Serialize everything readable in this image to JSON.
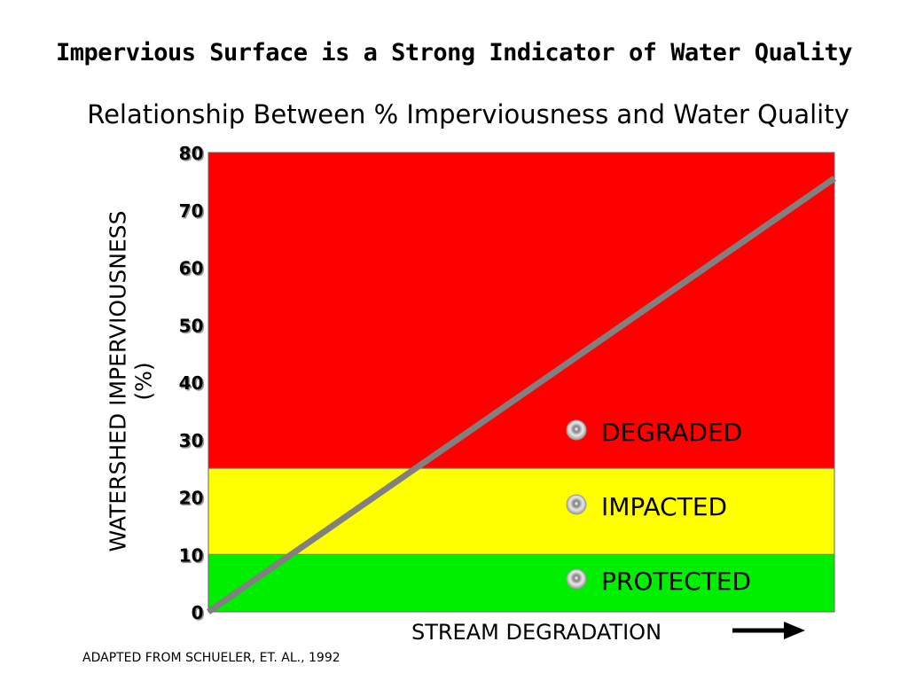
{
  "chart_data": {
    "type": "line",
    "title": "Impervious Surface is a Strong Indicator of Water Quality",
    "subtitle": "Relationship Between % Imperviousness and Water Quality",
    "ylabel_line1": "WATERSHED IMPERVIOUSNESS",
    "ylabel_line2": "(%)",
    "xlabel": "STREAM DEGRADATION",
    "ylim": [
      0,
      80
    ],
    "xlim": [
      0,
      1
    ],
    "yticks": [
      0,
      10,
      20,
      30,
      40,
      50,
      60,
      70,
      80
    ],
    "grid": false,
    "series": [
      {
        "color": "#808080",
        "x": [
          0,
          1
        ],
        "y": [
          0,
          75.5
        ]
      }
    ],
    "zones": [
      {
        "label": "PROTECTED",
        "from": 0,
        "to": 10,
        "color": "#00ee00"
      },
      {
        "label": "IMPACTED",
        "from": 10,
        "to": 25,
        "color": "#ffff00"
      },
      {
        "label": "DEGRADED",
        "from": 25,
        "to": 80,
        "color": "#ff0000"
      }
    ],
    "source": "ADAPTED FROM SCHUELER, ET. AL., 1992"
  }
}
